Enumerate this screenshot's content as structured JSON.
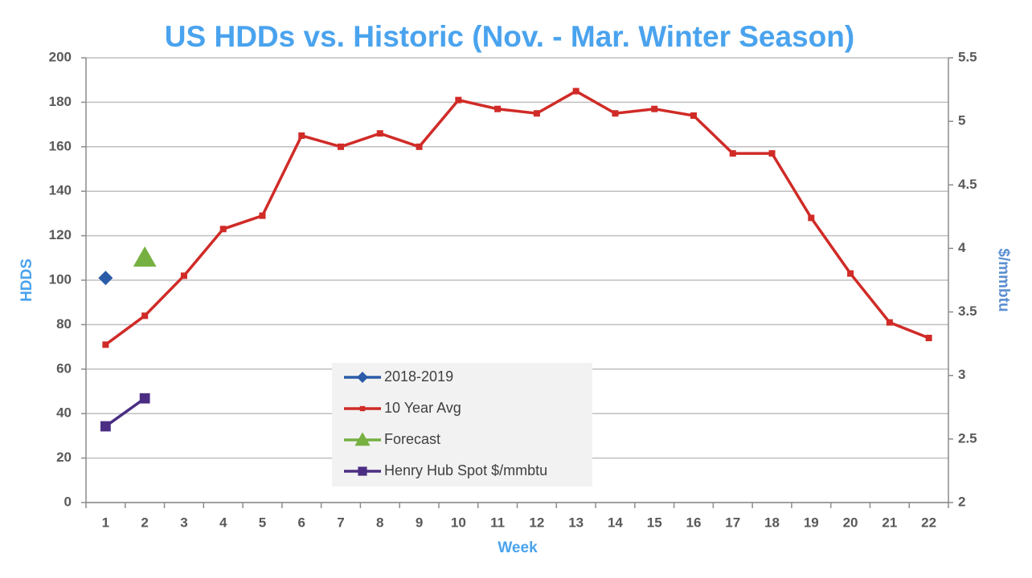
{
  "chart_data": {
    "type": "line",
    "title": "US HDDs vs. Historic (Nov. - Mar. Winter Season)",
    "x_label": "Week",
    "y_label": "HDDS",
    "y2_label": "$/mmbtu",
    "categories": [
      "1",
      "2",
      "3",
      "4",
      "5",
      "6",
      "7",
      "8",
      "9",
      "10",
      "11",
      "12",
      "13",
      "14",
      "15",
      "16",
      "17",
      "18",
      "19",
      "20",
      "21",
      "22"
    ],
    "series": [
      {
        "name": "2018-2019",
        "color": "#2a5ca8",
        "marker": "diamond",
        "values": [
          101,
          null,
          null,
          null,
          null,
          null,
          null,
          null,
          null,
          null,
          null,
          null,
          null,
          null,
          null,
          null,
          null,
          null,
          null,
          null,
          null,
          null
        ]
      },
      {
        "name": "10 Year Avg",
        "color": "#d02b27",
        "marker": "square",
        "values": [
          71,
          84,
          102,
          123,
          129,
          165,
          160,
          166,
          160,
          181,
          177,
          175,
          185,
          175,
          177,
          174,
          157,
          157,
          128,
          103,
          81,
          74
        ]
      },
      {
        "name": "Forecast",
        "color": "#76b041",
        "marker": "triangle",
        "values": [
          null,
          110,
          null,
          null,
          null,
          null,
          null,
          null,
          null,
          null,
          null,
          null,
          null,
          null,
          null,
          null,
          null,
          null,
          null,
          null,
          null,
          null
        ]
      },
      {
        "name": "Henry Hub Spot $/mmbtu",
        "color": "#4b2e83",
        "marker": "square",
        "axis": "y2",
        "values": [
          2.6,
          2.82,
          null,
          null,
          null,
          null,
          null,
          null,
          null,
          null,
          null,
          null,
          null,
          null,
          null,
          null,
          null,
          null,
          null,
          null,
          null,
          null
        ]
      }
    ],
    "ylim": [
      0,
      200
    ],
    "yticks": [
      0,
      20,
      40,
      60,
      80,
      100,
      120,
      140,
      160,
      180,
      200
    ],
    "y2lim": [
      2,
      5.5
    ],
    "y2ticks": [
      2,
      2.5,
      3,
      3.5,
      4,
      4.5,
      5,
      5.5
    ],
    "grid": true
  }
}
